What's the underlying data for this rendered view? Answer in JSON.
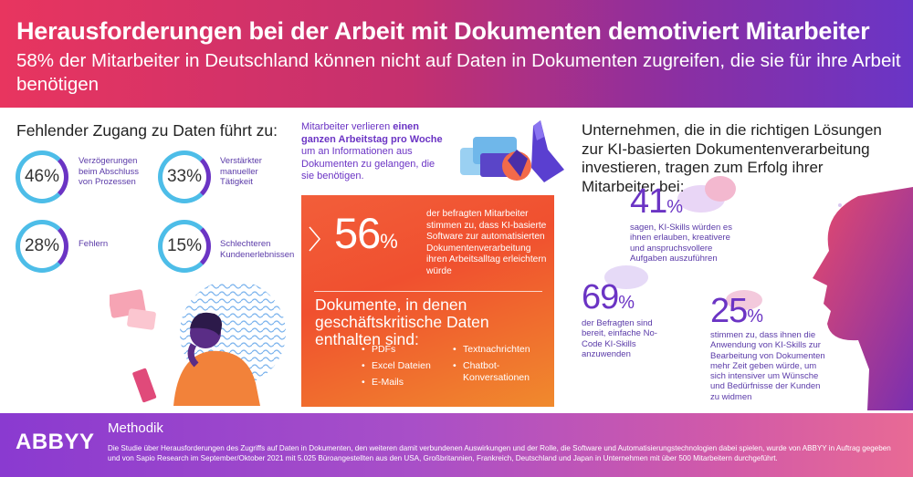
{
  "header": {
    "title": "Herausforderungen bei der Arbeit mit Dokumenten demotiviert Mitarbeiter",
    "subtitle": "58% der Mitarbeiter in Deutschland können nicht auf Daten in Dokumenten zugreifen, die sie für ihre Arbeit benötigen"
  },
  "left": {
    "heading": "Fehlender Zugang zu Daten führt zu:",
    "stats": [
      {
        "value": "46%",
        "label": "Verzögerungen beim Abschluss von Prozessen"
      },
      {
        "value": "33%",
        "label": "Verstärkter manueller Tätigkeit"
      },
      {
        "value": "28%",
        "label": "Fehlern"
      },
      {
        "value": "15%",
        "label": "Schlechteren Kundenerlebnissen"
      }
    ]
  },
  "middle": {
    "intro_pre": "Mitarbeiter verlieren ",
    "intro_bold": "einen ganzen Arbeitstag pro Woche",
    "intro_post": " um an Informationen aus Dokumenten zu gelangen, die sie benötigen.",
    "big_number": "56",
    "big_pct": "%",
    "big_text": "der befragten Mitarbeiter stimmen zu, dass KI-basierte Software zur automatisierten Dokumentenverarbeitung ihren Arbeitsalltag erleichtern würde",
    "docs_heading": "Dokumente, in denen geschäftskritische Daten enthalten sind:",
    "docs_col1": [
      "PDFs",
      "Excel Dateien",
      "E-Mails"
    ],
    "docs_col2": [
      "Textnachrichten",
      "Chatbot-Konversationen"
    ]
  },
  "right": {
    "heading": "Unternehmen, die in die richtigen Lösungen zur KI-basierten Dokumentenverarbeitung investieren, tragen zum Erfolg ihrer Mitarbeiter bei:",
    "stat1": {
      "number": "41",
      "pct": "%",
      "text": "sagen, KI-Skills würden es ihnen erlauben, kreativere und anspruchsvollere Aufgaben auszuführen"
    },
    "stat2": {
      "number": "69",
      "pct": "%",
      "text": "der Befragten sind bereit, einfache No-Code KI-Skills anzuwenden"
    },
    "stat3": {
      "number": "25",
      "pct": "%",
      "text": "stimmen zu, dass ihnen die Anwendung von KI-Skills zur Bearbeitung von Dokumenten mehr Zeit geben würde, um sich intensiver um Wünsche und Bedürfnisse der Kunden zu widmen"
    }
  },
  "footer": {
    "logo": "ABBYY",
    "method_title": "Methodik",
    "method_text": "Die Studie über Herausforderungen des Zugriffs auf Daten in Dokumenten, den weiteren damit verbundenen Auswirkungen und der Rolle, die Software und Automatisierungstechnologien dabei spielen, wurde von ABBYY in Auftrag gegeben und von Sapio Research im September/Oktober 2021 mit 5.025 Büroangestellten aus den USA, Großbritannien, Frankreich, Deutschland und Japan in Unternehmen mit über 500 Mitarbeitern durchgeführt."
  },
  "colors": {
    "purple": "#6b34c4",
    "cyan": "#4dbde8",
    "orange": "#f25e3a",
    "header_start": "#e8355f",
    "header_end": "#6a35c6"
  }
}
